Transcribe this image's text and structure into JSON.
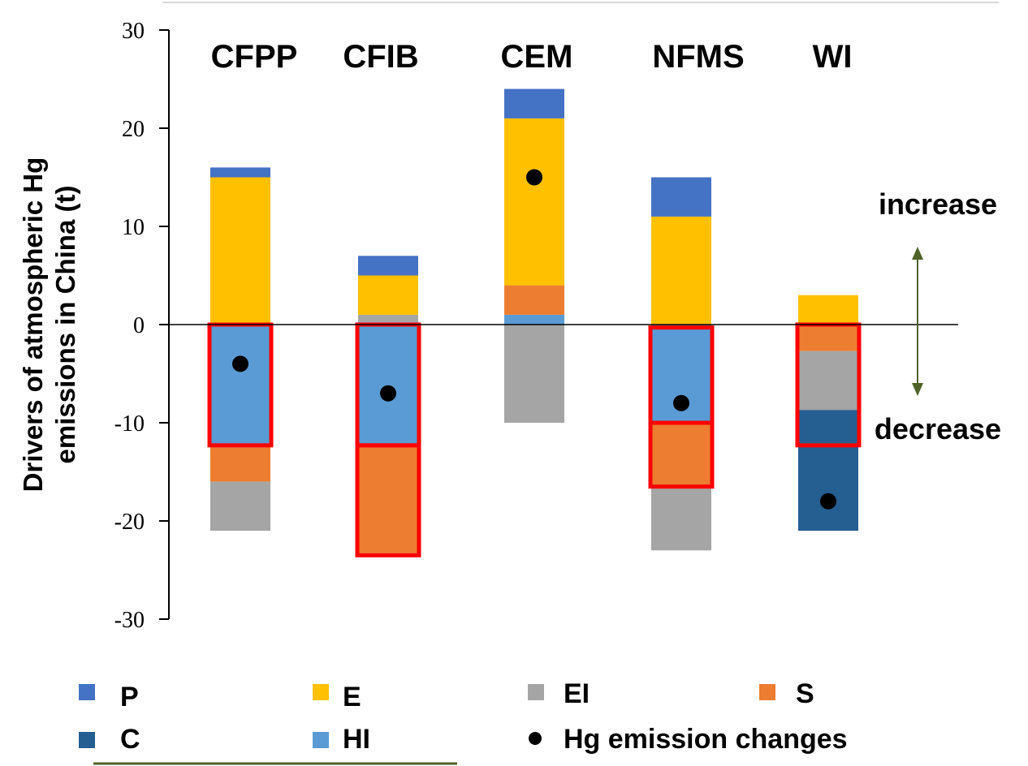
{
  "chart_data": {
    "type": "bar",
    "stacked": true,
    "title": "",
    "xlabel": "",
    "ylabel_line1": "Drivers of atmospheric Hg",
    "ylabel_line2": "emissions in China  (t)",
    "ylim": [
      -30,
      30
    ],
    "yticks": [
      30,
      20,
      10,
      0,
      -10,
      -20,
      -30
    ],
    "categories": [
      "CFPP",
      "CFIB",
      "CEM",
      "NFMS",
      "WI"
    ],
    "series": [
      {
        "name": "P",
        "color": "#4472C4",
        "values": [
          1,
          2,
          3,
          4,
          0
        ]
      },
      {
        "name": "E",
        "color": "#FFC000",
        "values": [
          15,
          4,
          17,
          11,
          3
        ]
      },
      {
        "name": "EI",
        "color": "#A5A5A5",
        "values": [
          -5,
          1,
          -10,
          -6.3,
          -6
        ]
      },
      {
        "name": "S",
        "color": "#ED7D31",
        "values": [
          -3.8,
          -11,
          3,
          -6.5,
          -2.7
        ]
      },
      {
        "name": "C",
        "color": "#255E91",
        "values": [
          0,
          0,
          0,
          0,
          -12.3
        ]
      },
      {
        "name": "HI",
        "color": "#5B9BD5",
        "values": [
          -12.2,
          -12.3,
          1,
          -10.2,
          0
        ]
      }
    ],
    "hg_emission_changes": {
      "name": "Hg emission changes",
      "values": [
        -4,
        -7,
        15,
        -8,
        -18
      ]
    },
    "highlight_boxes": [
      {
        "category": "CFPP",
        "from": 0,
        "to": -12.3
      },
      {
        "category": "CFIB",
        "from": 0,
        "to": -12.3
      },
      {
        "category": "CFIB",
        "from": -12.3,
        "to": -23.5
      },
      {
        "category": "NFMS",
        "from": -0.3,
        "to": -10
      },
      {
        "category": "NFMS",
        "from": -10,
        "to": -16.5
      },
      {
        "category": "WI",
        "from": 0,
        "to": -12.3
      }
    ],
    "annotations": {
      "increase": "increase",
      "decrease": "decrease"
    },
    "legend_placement": "bottom",
    "grid": false
  },
  "colors": {
    "highlight": "#FF0000",
    "arrow": "#4F6228",
    "accent_line": "#4F6228"
  }
}
